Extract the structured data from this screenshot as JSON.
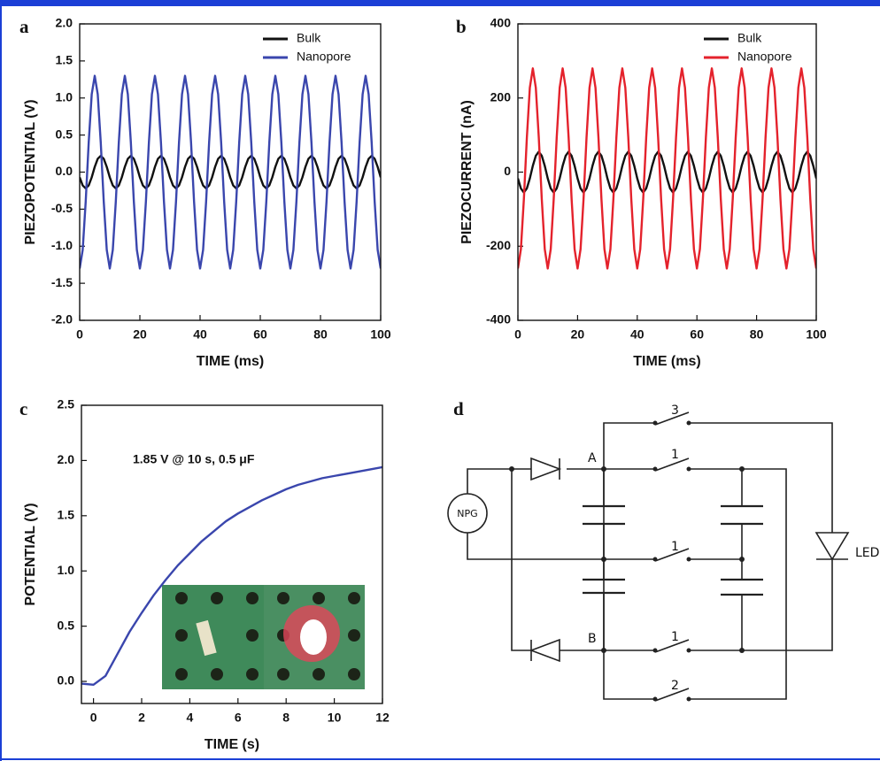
{
  "chart_data": [
    {
      "type": "line",
      "panel_label": "a",
      "x_label": "TIME (ms)",
      "y_label": "PIEZOPOTENTIAL (V)",
      "xlim": [
        0,
        100
      ],
      "xticks": [
        0,
        20,
        40,
        60,
        80,
        100
      ],
      "ylim": [
        -2,
        2
      ],
      "yticks": [
        {
          "value": -2,
          "label": "-2.0"
        },
        -1.5,
        {
          "value": -1,
          "label": "-1.0"
        },
        -0.5,
        {
          "value": 0,
          "label": "0.0"
        },
        0.5,
        {
          "value": 1,
          "label": "1.0"
        },
        1.5,
        {
          "value": 2,
          "label": "2.0"
        }
      ],
      "legend": "upper right",
      "x": [
        0,
        1,
        2,
        3,
        4,
        5,
        6,
        7,
        8,
        9,
        10,
        11,
        12,
        13,
        14,
        15,
        16,
        17,
        18,
        19,
        20,
        21,
        22,
        23,
        24,
        25,
        26,
        27,
        28,
        29,
        30,
        31,
        32,
        33,
        34,
        35,
        36,
        37,
        38,
        39,
        40,
        41,
        42,
        43,
        44,
        45,
        46,
        47,
        48,
        49,
        50,
        51,
        52,
        53,
        54,
        55,
        56,
        57,
        58,
        59,
        60,
        61,
        62,
        63,
        64,
        65,
        66,
        67,
        68,
        69,
        70,
        71,
        72,
        73,
        74,
        75,
        76,
        77,
        78,
        79,
        80,
        81,
        82,
        83,
        84,
        85,
        86,
        87,
        88,
        89,
        90,
        91,
        92,
        93,
        94,
        95,
        96,
        97,
        98,
        99,
        100
      ],
      "series": [
        {
          "name": "Bulk",
          "color": "#111111",
          "values": [
            -0.07,
            -0.18,
            -0.22,
            -0.18,
            -0.07,
            0.07,
            0.18,
            0.22,
            0.18,
            0.07,
            -0.07,
            -0.18,
            -0.22,
            -0.18,
            -0.07,
            0.07,
            0.18,
            0.22,
            0.18,
            0.07,
            -0.07,
            -0.18,
            -0.22,
            -0.18,
            -0.07,
            0.07,
            0.18,
            0.22,
            0.18,
            0.07,
            -0.07,
            -0.18,
            -0.22,
            -0.18,
            -0.07,
            0.07,
            0.18,
            0.22,
            0.18,
            0.07,
            -0.07,
            -0.18,
            -0.22,
            -0.18,
            -0.07,
            0.07,
            0.18,
            0.22,
            0.18,
            0.07,
            -0.07,
            -0.18,
            -0.22,
            -0.18,
            -0.07,
            0.07,
            0.18,
            0.22,
            0.18,
            0.07,
            -0.07,
            -0.18,
            -0.22,
            -0.18,
            -0.07,
            0.07,
            0.18,
            0.22,
            0.18,
            0.07,
            -0.07,
            -0.18,
            -0.22,
            -0.18,
            -0.07,
            0.07,
            0.18,
            0.22,
            0.18,
            0.07,
            -0.07,
            -0.18,
            -0.22,
            -0.18,
            -0.07,
            0.07,
            0.18,
            0.22,
            0.18,
            0.07,
            -0.07,
            -0.18,
            -0.22,
            -0.18,
            -0.07,
            0.07,
            0.18,
            0.22,
            0.18,
            0.07,
            -0.07
          ]
        },
        {
          "name": "Nanopore",
          "color": "#3a46ad",
          "values": [
            -1.3,
            -1.05,
            -0.4,
            0.4,
            1.05,
            1.3,
            1.05,
            0.4,
            -0.4,
            -1.05,
            -1.3,
            -1.05,
            -0.4,
            0.4,
            1.05,
            1.3,
            1.05,
            0.4,
            -0.4,
            -1.05,
            -1.3,
            -1.05,
            -0.4,
            0.4,
            1.05,
            1.3,
            1.05,
            0.4,
            -0.4,
            -1.05,
            -1.3,
            -1.05,
            -0.4,
            0.4,
            1.05,
            1.3,
            1.05,
            0.4,
            -0.4,
            -1.05,
            -1.3,
            -1.05,
            -0.4,
            0.4,
            1.05,
            1.3,
            1.05,
            0.4,
            -0.4,
            -1.05,
            -1.3,
            -1.05,
            -0.4,
            0.4,
            1.05,
            1.3,
            1.05,
            0.4,
            -0.4,
            -1.05,
            -1.3,
            -1.05,
            -0.4,
            0.4,
            1.05,
            1.3,
            1.05,
            0.4,
            -0.4,
            -1.05,
            -1.3,
            -1.05,
            -0.4,
            0.4,
            1.05,
            1.3,
            1.05,
            0.4,
            -0.4,
            -1.05,
            -1.3,
            -1.05,
            -0.4,
            0.4,
            1.05,
            1.3,
            1.05,
            0.4,
            -0.4,
            -1.05,
            -1.3,
            -1.05,
            -0.4,
            0.4,
            1.05,
            1.3,
            1.05,
            0.4,
            -0.4,
            -1.05,
            -1.3
          ]
        }
      ]
    },
    {
      "type": "line",
      "panel_label": "b",
      "x_label": "TIME (ms)",
      "y_label": "PIEZOCURRENT (nA)",
      "xlim": [
        0,
        100
      ],
      "xticks": [
        0,
        20,
        40,
        60,
        80,
        100
      ],
      "ylim": [
        -400,
        400
      ],
      "yticks": [
        -400,
        -200,
        0,
        200,
        400
      ],
      "legend": "upper right",
      "x": [
        0,
        1,
        2,
        3,
        4,
        5,
        6,
        7,
        8,
        9,
        10,
        11,
        12,
        13,
        14,
        15,
        16,
        17,
        18,
        19,
        20,
        21,
        22,
        23,
        24,
        25,
        26,
        27,
        28,
        29,
        30,
        31,
        32,
        33,
        34,
        35,
        36,
        37,
        38,
        39,
        40,
        41,
        42,
        43,
        44,
        45,
        46,
        47,
        48,
        49,
        50,
        51,
        52,
        53,
        54,
        55,
        56,
        57,
        58,
        59,
        60,
        61,
        62,
        63,
        64,
        65,
        66,
        67,
        68,
        69,
        70,
        71,
        72,
        73,
        74,
        75,
        76,
        77,
        78,
        79,
        80,
        81,
        82,
        83,
        84,
        85,
        86,
        87,
        88,
        89,
        90,
        91,
        92,
        93,
        94,
        95,
        96,
        97,
        98,
        99,
        100
      ],
      "series": [
        {
          "name": "Bulk",
          "color": "#111111",
          "values": [
            -17,
            -44,
            -55,
            -44,
            -17,
            17,
            44,
            55,
            44,
            17,
            -17,
            -44,
            -55,
            -44,
            -17,
            17,
            44,
            55,
            44,
            17,
            -17,
            -44,
            -55,
            -44,
            -17,
            17,
            44,
            55,
            44,
            17,
            -17,
            -44,
            -55,
            -44,
            -17,
            17,
            44,
            55,
            44,
            17,
            -17,
            -44,
            -55,
            -44,
            -17,
            17,
            44,
            55,
            44,
            17,
            -17,
            -44,
            -55,
            -44,
            -17,
            17,
            44,
            55,
            44,
            17,
            -17,
            -44,
            -55,
            -44,
            -17,
            17,
            44,
            55,
            44,
            17,
            -17,
            -44,
            -55,
            -44,
            -17,
            17,
            44,
            55,
            44,
            17,
            -17,
            -44,
            -55,
            -44,
            -17,
            17,
            44,
            55,
            44,
            17,
            -17,
            -44,
            -55,
            -44,
            -17,
            17,
            44,
            55,
            44,
            17,
            -17
          ]
        },
        {
          "name": "Nanopore",
          "color": "#e4222c",
          "values": [
            -260,
            -208,
            -73,
            93,
            228,
            280,
            228,
            93,
            -73,
            -208,
            -260,
            -208,
            -73,
            93,
            228,
            280,
            228,
            93,
            -73,
            -208,
            -260,
            -208,
            -73,
            93,
            228,
            280,
            228,
            93,
            -73,
            -208,
            -260,
            -208,
            -73,
            93,
            228,
            280,
            228,
            93,
            -73,
            -208,
            -260,
            -208,
            -73,
            93,
            228,
            280,
            228,
            93,
            -73,
            -208,
            -260,
            -208,
            -73,
            93,
            228,
            280,
            228,
            93,
            -73,
            -208,
            -260,
            -208,
            -73,
            93,
            228,
            280,
            228,
            93,
            -73,
            -208,
            -260,
            -208,
            -73,
            93,
            228,
            280,
            228,
            93,
            -73,
            -208,
            -260,
            -208,
            -73,
            93,
            228,
            280,
            228,
            93,
            -73,
            -208,
            -260,
            -208,
            -73,
            93,
            228,
            280,
            228,
            93,
            -73,
            -208,
            -260
          ]
        }
      ]
    },
    {
      "type": "line",
      "panel_label": "c",
      "x_label": "TIME (s)",
      "y_label": "POTENTIAL (V)",
      "annotation": "1.85 V @ 10 s, 0.5 μF",
      "xlim": [
        -0.5,
        12
      ],
      "xticks": [
        0,
        2,
        4,
        6,
        8,
        10,
        12
      ],
      "ylim": [
        -0.2,
        2.5
      ],
      "yticks": [
        {
          "value": 0,
          "label": "0.0"
        },
        0.5,
        {
          "value": 1,
          "label": "1.0"
        },
        1.5,
        {
          "value": 2,
          "label": "2.0"
        },
        2.5
      ],
      "x": [
        -0.5,
        0,
        0.5,
        1,
        1.5,
        2,
        2.5,
        3,
        3.5,
        4,
        4.5,
        5,
        5.5,
        6,
        6.5,
        7,
        7.5,
        8,
        8.5,
        9,
        9.5,
        10,
        10.5,
        11,
        11.5,
        12
      ],
      "series": [
        {
          "color": "#3a46ad",
          "values": [
            -0.02,
            -0.03,
            0.05,
            0.25,
            0.45,
            0.62,
            0.78,
            0.92,
            1.05,
            1.16,
            1.27,
            1.36,
            1.45,
            1.52,
            1.58,
            1.64,
            1.69,
            1.74,
            1.78,
            1.81,
            1.84,
            1.86,
            1.88,
            1.9,
            1.92,
            1.94
          ]
        }
      ]
    }
  ],
  "diagram": {
    "panel_label": "d",
    "source": "NPG",
    "node_top": "A",
    "node_bottom": "B",
    "switches": [
      "3",
      "1",
      "1",
      "1",
      "2"
    ],
    "load": "LED"
  }
}
